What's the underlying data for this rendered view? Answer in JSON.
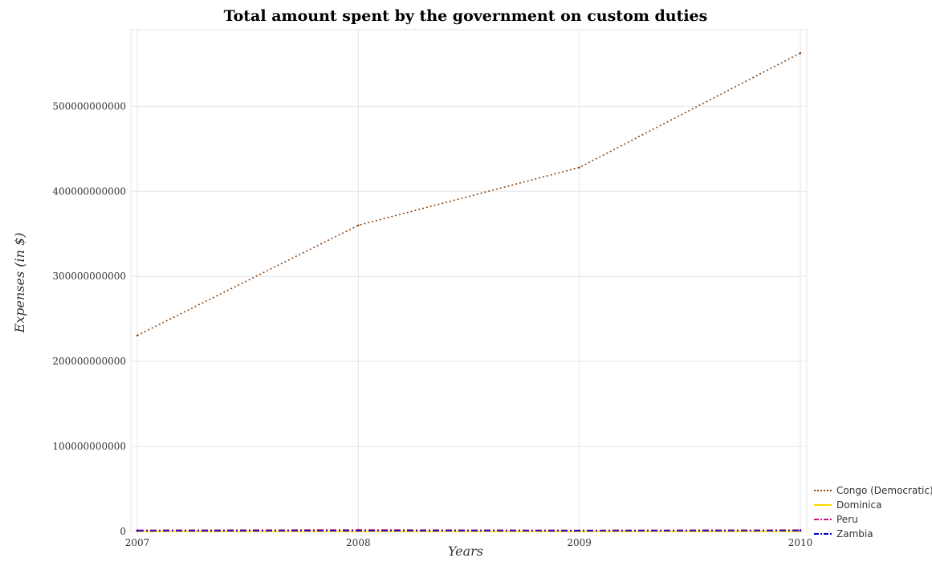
{
  "chart_data": {
    "type": "line",
    "title": "Total amount spent by the government on custom duties",
    "xlabel": "Years",
    "ylabel": "Expenses (in $)",
    "categories": [
      "2007",
      "2008",
      "2009",
      "2010"
    ],
    "ylim": [
      0,
      590000000000
    ],
    "yticks": [
      0,
      100000000000,
      200000000000,
      300000000000,
      400000000000,
      500000000000
    ],
    "ytick_labels": [
      "0",
      "100000000000",
      "200000000000",
      "300000000000",
      "400000000000",
      "500000000000"
    ],
    "grid": true,
    "legend_position": "bottom-right",
    "series": [
      {
        "name": "Congo (Democratic)",
        "color": "#8B4513",
        "style": "dotted",
        "values": [
          230500000000,
          360000000000,
          428000000000,
          562500000000
        ]
      },
      {
        "name": "Dominica",
        "color": "#FFD700",
        "style": "solid",
        "values": [
          40000000,
          50000000,
          45000000,
          48000000
        ]
      },
      {
        "name": "Peru",
        "color": "#C71585",
        "style": "dash-dot",
        "values": [
          1500000000,
          1900000000,
          1400000000,
          1700000000
        ]
      },
      {
        "name": "Zambia",
        "color": "#0000CD",
        "style": "dash-dot",
        "values": [
          700000000,
          900000000,
          800000000,
          1000000000
        ]
      }
    ]
  }
}
